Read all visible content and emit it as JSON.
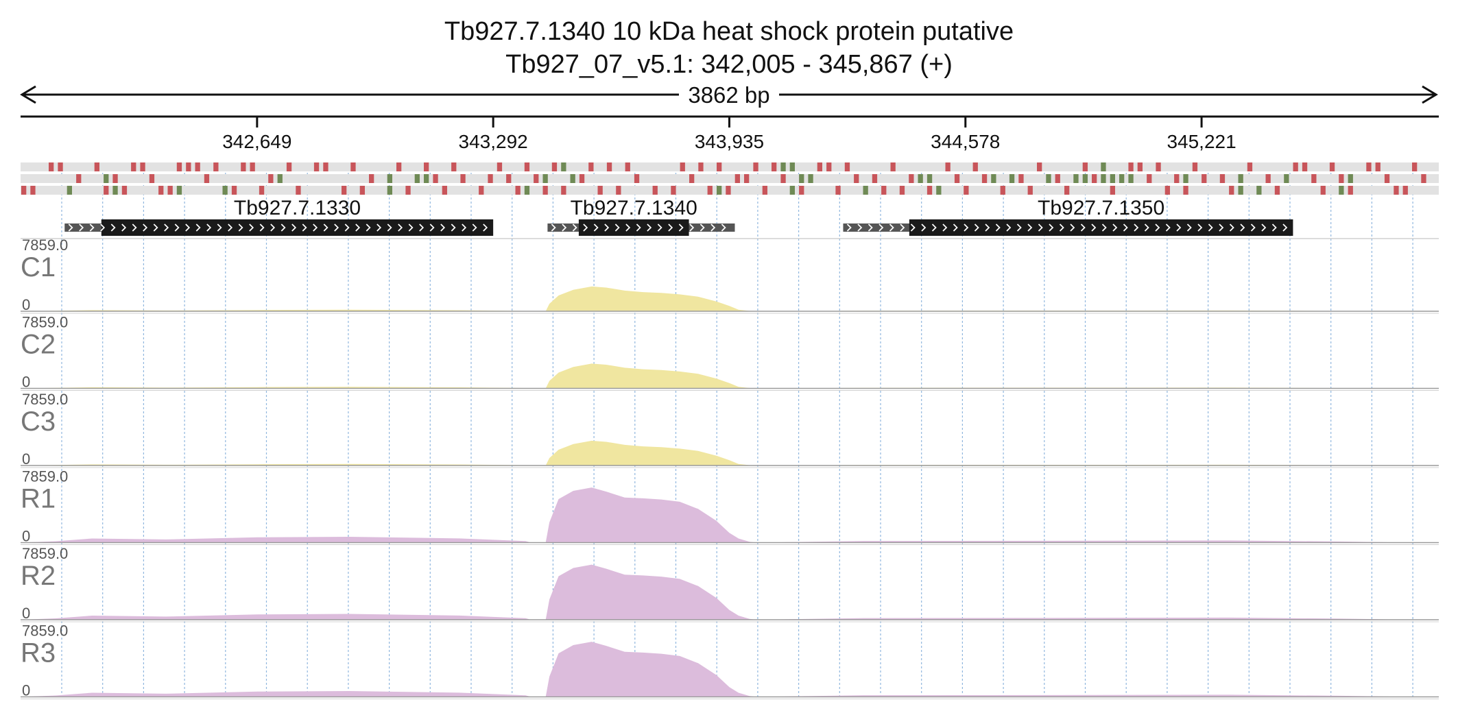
{
  "header": {
    "title": "Tb927.7.1340  10 kDa heat shock protein  putative",
    "location": "Tb927_07_v5.1: 342,005 - 345,867 (+)",
    "span_label": "3862 bp"
  },
  "chart_data": {
    "type": "area",
    "title": "Tb927.7.1340  10 kDa heat shock protein  putative",
    "subtitle": "Tb927_07_v5.1: 342,005 - 345,867 (+)",
    "x_range": [
      342005,
      345867
    ],
    "ticks": [
      {
        "pos": 342649,
        "label": "342,649"
      },
      {
        "pos": 343292,
        "label": "343,292"
      },
      {
        "pos": 343935,
        "label": "343,935"
      },
      {
        "pos": 344578,
        "label": "344,578"
      },
      {
        "pos": 345221,
        "label": "345,221"
      }
    ],
    "genes": [
      {
        "name": "Tb927.7.1330",
        "start": 342125,
        "end": 343085,
        "cds_start": 342225,
        "cds_end": 343292
      },
      {
        "name": "Tb927.7.1340",
        "start": 343440,
        "end": 343950,
        "cds_start": 343525,
        "cds_end": 343825
      },
      {
        "name": "Tb927.7.1350",
        "start": 344245,
        "end": 345420,
        "cds_start": 344425,
        "cds_end": 345470
      }
    ],
    "ylim": [
      0,
      7859.0
    ],
    "y_max_label": "7859.0",
    "y_min_label": "0",
    "tracks": [
      {
        "name": "C1",
        "color": "#f0e6a0",
        "group": "C"
      },
      {
        "name": "C2",
        "color": "#f0e6a0",
        "group": "C"
      },
      {
        "name": "C3",
        "color": "#f0e6a0",
        "group": "C"
      },
      {
        "name": "R1",
        "color": "#dcbcdc",
        "group": "R"
      },
      {
        "name": "R2",
        "color": "#dcbcdc",
        "group": "R"
      },
      {
        "name": "R3",
        "color": "#dcbcdc",
        "group": "R"
      }
    ],
    "coverage_profiles": {
      "C": {
        "x": [
          342005,
          342100,
          342200,
          342400,
          342650,
          342900,
          343200,
          343380,
          343395,
          343435,
          343445,
          343470,
          343510,
          343560,
          343600,
          343650,
          343700,
          343750,
          343800,
          343850,
          343900,
          343935,
          343960,
          343990,
          344010,
          344300,
          344800,
          345300,
          345600,
          345800,
          345867
        ],
        "y": [
          0,
          60,
          150,
          100,
          160,
          210,
          140,
          40,
          0,
          0,
          1000,
          2100,
          2850,
          3300,
          3150,
          2750,
          2550,
          2450,
          2250,
          1950,
          1300,
          700,
          200,
          50,
          0,
          60,
          90,
          100,
          40,
          0,
          0
        ]
      },
      "R": {
        "x": [
          342005,
          342100,
          342200,
          342400,
          342650,
          342900,
          343200,
          343380,
          343395,
          343435,
          343445,
          343470,
          343510,
          343560,
          343600,
          343650,
          343700,
          343750,
          343800,
          343850,
          343900,
          343935,
          343960,
          343990,
          344010,
          344300,
          344800,
          345300,
          345600,
          345800,
          345867
        ],
        "y": [
          0,
          180,
          550,
          420,
          700,
          780,
          560,
          200,
          0,
          0,
          2700,
          5800,
          6900,
          7350,
          6800,
          6000,
          5900,
          5750,
          5450,
          4500,
          2900,
          1300,
          550,
          120,
          0,
          220,
          240,
          280,
          150,
          0,
          0
        ]
      }
    },
    "variants": {
      "rows": 3,
      "colors": {
        "red": "#c8555a",
        "green": "#6f8a55"
      },
      "grid": {
        "start": 342005,
        "step": 24.62,
        "cols": 155
      },
      "red_cells": [
        [
          3,
          4,
          8,
          12,
          13,
          17,
          18,
          19,
          21,
          24,
          25,
          29,
          32,
          33,
          36,
          41,
          44,
          47,
          52,
          55,
          58,
          62,
          64,
          66,
          72,
          74,
          76,
          80,
          82,
          87,
          88,
          90,
          95,
          101,
          104,
          111,
          116,
          121,
          122,
          124,
          128,
          134,
          139,
          140,
          143,
          147,
          148,
          152
        ],
        [
          6,
          10,
          14,
          20,
          27,
          38,
          45,
          48,
          51,
          53,
          56,
          61,
          67,
          73,
          78,
          79,
          83,
          91,
          93,
          97,
          102,
          105,
          109,
          113,
          117,
          123,
          126,
          129,
          131,
          136,
          141,
          144,
          149,
          153
        ],
        [
          0,
          1,
          9,
          11,
          15,
          16,
          23,
          26,
          30,
          35,
          37,
          42,
          46,
          50,
          54,
          57,
          59,
          63,
          65,
          69,
          71,
          75,
          77,
          81,
          85,
          89,
          94,
          96,
          99,
          103,
          107,
          110,
          114,
          119,
          125,
          127,
          132,
          137,
          142,
          145,
          150,
          151
        ]
      ],
      "green_cells": [
        [
          59,
          83,
          84,
          118
        ],
        [
          9,
          28,
          40,
          43,
          44,
          57,
          60,
          85,
          86,
          98,
          99,
          106,
          108,
          112,
          115,
          116,
          118,
          119,
          120,
          121,
          127,
          133,
          138,
          145
        ],
        [
          5,
          10,
          17,
          22,
          40,
          55,
          76,
          84,
          92,
          100,
          133,
          135,
          144
        ]
      ]
    }
  }
}
